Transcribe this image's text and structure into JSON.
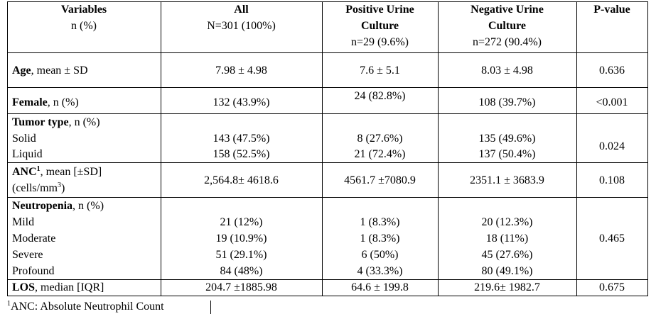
{
  "header": {
    "variables_title": "Variables",
    "variables_sub": "n (%)",
    "all_title": "All",
    "all_sub": "N=301 (100%)",
    "pos_title1": "Positive Urine",
    "pos_title2": "Culture",
    "pos_sub": "n=29 (9.6%)",
    "neg_title1": "Negative Urine",
    "neg_title2": "Culture",
    "neg_sub": "n=272 (90.4%)",
    "pvalue_title": "P-value"
  },
  "rows": {
    "age": {
      "label_bold": "Age",
      "label_rest": ", mean ± SD",
      "all": "7.98 ± 4.98",
      "pos": "7.6 ± 5.1",
      "neg": "8.03 ± 4.98",
      "p": "0.636"
    },
    "female": {
      "label_bold": "Female",
      "label_rest": ", n (%)",
      "all": "132 (43.9%)",
      "pos": "24 (82.8%)",
      "neg": "108 (39.7%)",
      "p": "<0.001"
    },
    "tumor": {
      "label_bold": "Tumor type",
      "label_rest": ", n (%)",
      "p": "0.024",
      "sub": [
        {
          "label": "Solid",
          "all": "143 (47.5%)",
          "pos": "8 (27.6%)",
          "neg": "135 (49.6%)"
        },
        {
          "label": "Liquid",
          "all": "158 (52.5%)",
          "pos": "21 (72.4%)",
          "neg": "137 (50.4%)"
        }
      ]
    },
    "anc": {
      "label_bold": "ANC",
      "label_sup": "1",
      "label_rest": ", mean [±SD]",
      "unit_pre": "(cells/mm",
      "unit_sup": "3",
      "unit_post": ")",
      "all": "2,564.8± 4618.6",
      "pos": "4561.7 ±7080.9",
      "neg": "2351.1 ± 3683.9",
      "p": "0.108"
    },
    "neutropenia": {
      "label_bold": "Neutropenia",
      "label_rest": ", n (%)",
      "p": "0.465",
      "sub": [
        {
          "label": "Mild",
          "all": "21 (12%)",
          "pos": "1 (8.3%)",
          "neg": "20 (12.3%)"
        },
        {
          "label": "Moderate",
          "all": "19 (10.9%)",
          "pos": "1 (8.3%)",
          "neg": "18 (11%)"
        },
        {
          "label": "Severe",
          "all": "51 (29.1%)",
          "pos": "6 (50%)",
          "neg": "45 (27.6%)"
        },
        {
          "label": "Profound",
          "all": "84 (48%)",
          "pos": "4 (33.3%)",
          "neg": "80 (49.1%)"
        }
      ]
    },
    "los": {
      "label_bold": "LOS",
      "label_rest": ", median [IQR]",
      "all": "204.7 ±1885.98",
      "pos": "64.6 ± 199.8",
      "neg": "219.6± 1982.7",
      "p": "0.675"
    }
  },
  "footnote": {
    "sup": "1",
    "text": "ANC: Absolute Neutrophil Count"
  }
}
